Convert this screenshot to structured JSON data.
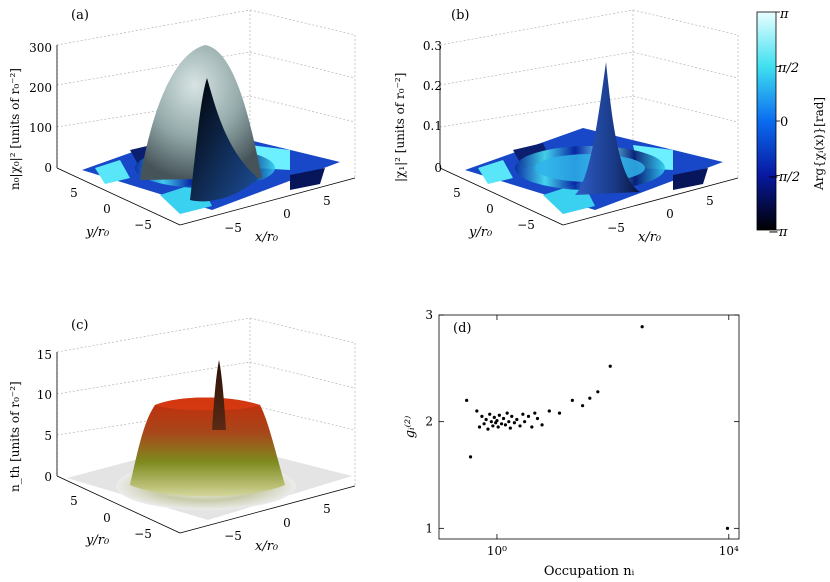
{
  "panels": {
    "a": {
      "tag": "(a)",
      "zlabel": "n₀|χ₀|² [units of r₀⁻²]",
      "zticks": [
        "300",
        "200",
        "100",
        "0"
      ],
      "xlabel": "x/r₀",
      "ylabel": "y/r₀",
      "xticks": [
        "−5",
        "0",
        "5"
      ],
      "yticks": [
        "5",
        "0",
        "−5"
      ]
    },
    "b": {
      "tag": "(b)",
      "zlabel": "|χ₁|² [units of r₀⁻²]",
      "zticks": [
        "0.3",
        "0.2",
        "0.1",
        "0"
      ],
      "xlabel": "x/r₀",
      "ylabel": "y/r₀",
      "xticks": [
        "−5",
        "0",
        "5"
      ],
      "yticks": [
        "5",
        "0",
        "−5"
      ]
    },
    "c": {
      "tag": "(c)",
      "zlabel": "n_th [units of r₀⁻²]",
      "zticks": [
        "15",
        "10",
        "5",
        "0"
      ],
      "xlabel": "x/r₀",
      "ylabel": "y/r₀",
      "xticks": [
        "−5",
        "0",
        "5"
      ],
      "yticks": [
        "5",
        "0",
        "−5"
      ]
    }
  },
  "colorbar": {
    "label": "Arg{χᵢ(x)}[rad]",
    "ticks": [
      "π",
      "π/2",
      "0",
      "−π/2",
      "−π"
    ],
    "colors": {
      "top": "#e8ffff",
      "upper": "#3fe0f0",
      "mid": "#0a6cf0",
      "lower": "#0818a0",
      "bottom": "#000000"
    }
  },
  "chart_data": {
    "type": "scatter",
    "tag": "(d)",
    "xlabel": "Occupation nᵢ",
    "ylabel": "gᵢ⁽²⁾",
    "xscale": "log",
    "xlim": [
      0.1,
      15000
    ],
    "ylim": [
      0.9,
      3
    ],
    "xticks": [
      {
        "value": 1,
        "label": "10⁰"
      },
      {
        "value": 10000,
        "label": "10⁴"
      }
    ],
    "yticks": [
      {
        "value": 1,
        "label": "1"
      },
      {
        "value": 2,
        "label": "2"
      },
      {
        "value": 3,
        "label": "3"
      }
    ],
    "points": [
      [
        0.3,
        2.2
      ],
      [
        0.35,
        1.67
      ],
      [
        0.45,
        2.1
      ],
      [
        0.5,
        1.95
      ],
      [
        0.55,
        2.05
      ],
      [
        0.6,
        1.98
      ],
      [
        0.65,
        2.02
      ],
      [
        0.7,
        1.93
      ],
      [
        0.75,
        2.07
      ],
      [
        0.8,
        2.0
      ],
      [
        0.85,
        1.96
      ],
      [
        0.9,
        2.04
      ],
      [
        0.95,
        1.99
      ],
      [
        1.0,
        2.01
      ],
      [
        1.05,
        1.95
      ],
      [
        1.1,
        2.06
      ],
      [
        1.2,
        1.98
      ],
      [
        1.3,
        2.03
      ],
      [
        1.4,
        1.97
      ],
      [
        1.5,
        2.08
      ],
      [
        1.6,
        2.0
      ],
      [
        1.7,
        1.94
      ],
      [
        1.8,
        2.05
      ],
      [
        2.0,
        1.99
      ],
      [
        2.2,
        2.02
      ],
      [
        2.5,
        1.96
      ],
      [
        2.8,
        2.07
      ],
      [
        3.0,
        2.0
      ],
      [
        3.5,
        2.05
      ],
      [
        4.0,
        1.95
      ],
      [
        4.5,
        2.08
      ],
      [
        5.0,
        2.03
      ],
      [
        6.0,
        1.97
      ],
      [
        8.0,
        2.1
      ],
      [
        12.0,
        2.08
      ],
      [
        20.0,
        2.2
      ],
      [
        30.0,
        2.15
      ],
      [
        40.0,
        2.22
      ],
      [
        55.0,
        2.28
      ],
      [
        90.0,
        2.52
      ],
      [
        320.0,
        2.89
      ],
      [
        9500.0,
        1.0
      ]
    ]
  }
}
